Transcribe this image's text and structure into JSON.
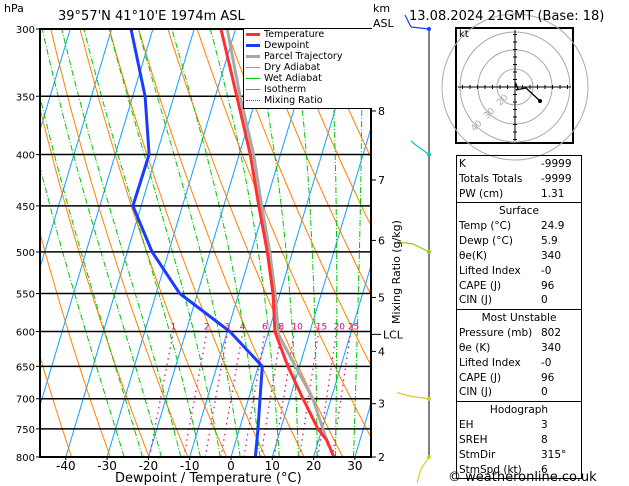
{
  "header": {
    "pressure_unit": "hPa",
    "location": "39°57'N  41°10'E  1974m  ASL",
    "km_label": "km",
    "asl_label": "ASL",
    "datetime": "13.08.2024  21GMT  (Base: 18)"
  },
  "colors": {
    "temperature": "#ff3030",
    "dewpoint": "#1a3cff",
    "parcel": "#a8a8a8",
    "dry_adiabat": "#ff8000",
    "wet_adiabat": "#00c800",
    "isotherm": "#10a0ff",
    "mixing_ratio": "#e0007f"
  },
  "chart_data": {
    "type": "line",
    "subtype": "skew-T log-P",
    "xlabel": "Dewpoint / Temperature (°C)",
    "ylabel": "hPa",
    "right_axis_label": "Mixing Ratio (g/kg)",
    "xlim": [
      -46,
      34
    ],
    "ylim": [
      800,
      300
    ],
    "x_ticks": [
      "-40",
      "-30",
      "-20",
      "-10",
      "0",
      "10",
      "20",
      "30"
    ],
    "x_tick_values": [
      -40,
      -30,
      -20,
      -10,
      0,
      10,
      20,
      30
    ],
    "pressure_ticks": [
      "300",
      "350",
      "400",
      "450",
      "500",
      "550",
      "600",
      "650",
      "700",
      "750",
      "800"
    ],
    "pressure_tick_values": [
      300,
      350,
      400,
      450,
      500,
      550,
      600,
      650,
      700,
      750,
      800
    ],
    "km_ticks": [
      {
        "label": "8",
        "p": 362
      },
      {
        "label": "7",
        "p": 424
      },
      {
        "label": "6",
        "p": 487
      },
      {
        "label": "5",
        "p": 555
      },
      {
        "label": "4",
        "p": 628
      },
      {
        "label": "3",
        "p": 708
      },
      {
        "label": "2",
        "p": 800
      }
    ],
    "lcl": {
      "label": "LCL",
      "p": 604
    },
    "mixing_ratio_labels": [
      "1",
      "2",
      "3",
      "4",
      "6",
      "8",
      "10",
      "15",
      "20",
      "25"
    ],
    "mixing_ratio_values": [
      1,
      2,
      3,
      4,
      6,
      8,
      10,
      15,
      20,
      25
    ],
    "legend": [
      "Temperature",
      "Dewpoint",
      "Parcel Trajectory",
      "Dry Adiabat",
      "Wet Adiabat",
      "Isotherm",
      "Mixing Ratio"
    ],
    "legend_position": "top-right",
    "series": [
      {
        "name": "Temperature",
        "p": [
          800,
          770,
          750,
          700,
          650,
          600,
          550,
          500,
          450,
          400,
          350,
          300
        ],
        "t": [
          24.9,
          22.0,
          19.0,
          13.2,
          7.2,
          1.5,
          -1.7,
          -6.1,
          -11.5,
          -17.3,
          -24.8,
          -33.5
        ]
      },
      {
        "name": "Dewpoint",
        "p": [
          800,
          750,
          700,
          650,
          600,
          550,
          500,
          450,
          400,
          350,
          300
        ],
        "t": [
          5.9,
          4.5,
          2.8,
          1.0,
          -9.4,
          -24.3,
          -34.0,
          -42.0,
          -41.8,
          -47.0,
          -55.3
        ]
      },
      {
        "name": "Parcel Trajectory",
        "p": [
          780,
          750,
          700,
          650,
          604,
          550,
          500,
          450,
          400,
          350,
          300
        ],
        "t": [
          22.8,
          20.2,
          15.6,
          9.0,
          2.6,
          -1.2,
          -5.5,
          -10.8,
          -16.5,
          -24.0,
          -32.0
        ]
      }
    ],
    "wind_barbs": [
      {
        "p": 300,
        "color": "#1a3cff"
      },
      {
        "p": 400,
        "color": "#10c0c0"
      },
      {
        "p": 500,
        "color": "#90d020"
      },
      {
        "p": 700,
        "color": "#d0d020"
      },
      {
        "p": 800,
        "color": "#d0d020"
      }
    ]
  },
  "hodograph": {
    "unit_label": "kt",
    "ring_labels": [
      "20",
      "30",
      "40"
    ]
  },
  "indices": {
    "rows": [
      {
        "label": "K",
        "value": "-9999"
      },
      {
        "label": "Totals Totals",
        "value": "-9999"
      },
      {
        "label": "PW (cm)",
        "value": "1.31"
      }
    ]
  },
  "surface": {
    "title": "Surface",
    "rows": [
      {
        "label": "Temp (°C)",
        "value": "24.9"
      },
      {
        "label": "Dewp (°C)",
        "value": "5.9"
      },
      {
        "label": "θe(K)",
        "value": "340"
      },
      {
        "label": "Lifted Index",
        "value": "-0"
      },
      {
        "label": "CAPE (J)",
        "value": "96"
      },
      {
        "label": "CIN (J)",
        "value": "0"
      }
    ]
  },
  "most_unstable": {
    "title": "Most Unstable",
    "rows": [
      {
        "label": "Pressure (mb)",
        "value": "802"
      },
      {
        "label": "θe (K)",
        "value": "340"
      },
      {
        "label": "Lifted Index",
        "value": "-0"
      },
      {
        "label": "CAPE (J)",
        "value": "96"
      },
      {
        "label": "CIN (J)",
        "value": "0"
      }
    ]
  },
  "hodograph_table": {
    "title": "Hodograph",
    "rows": [
      {
        "label": "EH",
        "value": "3"
      },
      {
        "label": "SREH",
        "value": "8"
      },
      {
        "label": "StmDir",
        "value": "315°"
      },
      {
        "label": "StmSpd (kt)",
        "value": "6"
      }
    ]
  },
  "footer": {
    "copyright": "© weatheronline.co.uk"
  }
}
